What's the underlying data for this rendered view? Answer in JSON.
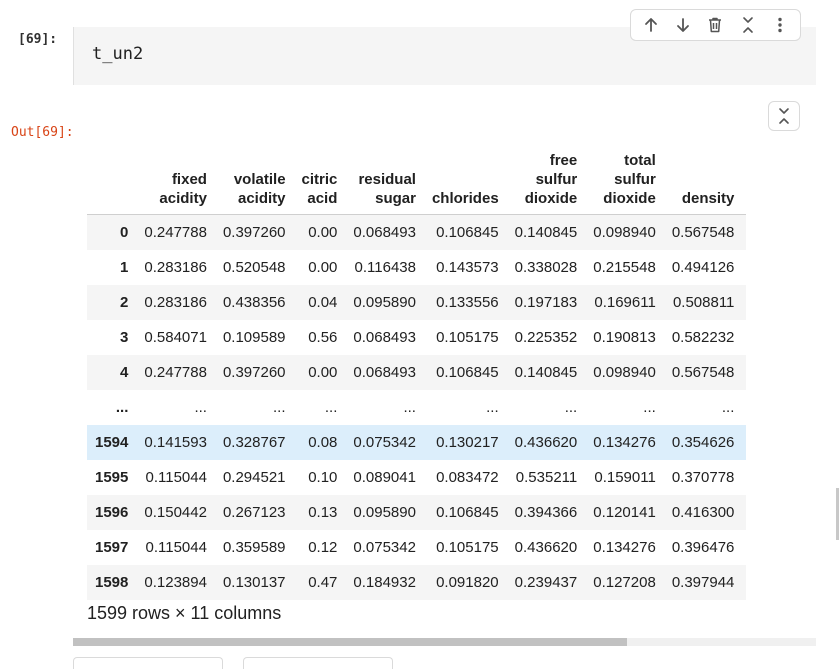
{
  "input_cell": {
    "prompt": "[69]:",
    "code": "t_un2"
  },
  "toolbar": {
    "icons": [
      "arrow-up-icon",
      "arrow-down-icon",
      "trash-icon",
      "collapse-icon",
      "more-vert-icon"
    ]
  },
  "output_cell": {
    "prompt": "Out[69]:"
  },
  "table": {
    "columns": [
      [
        "fixed",
        "acidity"
      ],
      [
        "volatile",
        "acidity"
      ],
      [
        "citric",
        "acid"
      ],
      [
        "residual",
        "sugar"
      ],
      [
        "chlorides"
      ],
      [
        "free",
        "sulfur",
        "dioxide"
      ],
      [
        "total",
        "sulfur",
        "dioxide"
      ],
      [
        "density"
      ]
    ],
    "rows": [
      {
        "index": "0",
        "values": [
          "0.247788",
          "0.397260",
          "0.00",
          "0.068493",
          "0.106845",
          "0.140845",
          "0.098940",
          "0.567548"
        ]
      },
      {
        "index": "1",
        "values": [
          "0.283186",
          "0.520548",
          "0.00",
          "0.116438",
          "0.143573",
          "0.338028",
          "0.215548",
          "0.494126"
        ]
      },
      {
        "index": "2",
        "values": [
          "0.283186",
          "0.438356",
          "0.04",
          "0.095890",
          "0.133556",
          "0.197183",
          "0.169611",
          "0.508811"
        ]
      },
      {
        "index": "3",
        "values": [
          "0.584071",
          "0.109589",
          "0.56",
          "0.068493",
          "0.105175",
          "0.225352",
          "0.190813",
          "0.582232"
        ]
      },
      {
        "index": "4",
        "values": [
          "0.247788",
          "0.397260",
          "0.00",
          "0.068493",
          "0.106845",
          "0.140845",
          "0.098940",
          "0.567548"
        ]
      },
      {
        "index": "...",
        "values": [
          "...",
          "...",
          "...",
          "...",
          "...",
          "...",
          "...",
          "..."
        ],
        "ellipsis": true
      },
      {
        "index": "1594",
        "values": [
          "0.141593",
          "0.328767",
          "0.08",
          "0.075342",
          "0.130217",
          "0.436620",
          "0.134276",
          "0.354626"
        ],
        "highlight": true
      },
      {
        "index": "1595",
        "values": [
          "0.115044",
          "0.294521",
          "0.10",
          "0.089041",
          "0.083472",
          "0.535211",
          "0.159011",
          "0.370778"
        ]
      },
      {
        "index": "1596",
        "values": [
          "0.150442",
          "0.267123",
          "0.13",
          "0.095890",
          "0.106845",
          "0.394366",
          "0.120141",
          "0.416300"
        ]
      },
      {
        "index": "1597",
        "values": [
          "0.115044",
          "0.359589",
          "0.12",
          "0.075342",
          "0.105175",
          "0.436620",
          "0.134276",
          "0.396476"
        ]
      },
      {
        "index": "1598",
        "values": [
          "0.123894",
          "0.130137",
          "0.47",
          "0.184932",
          "0.091820",
          "0.239437",
          "0.127208",
          "0.397944"
        ]
      }
    ],
    "shape_text": "1599 rows × 11 columns"
  },
  "colors": {
    "out_prompt": "#d84315",
    "row_highlight": "#dceefb",
    "stripe": "#f5f5f5"
  }
}
